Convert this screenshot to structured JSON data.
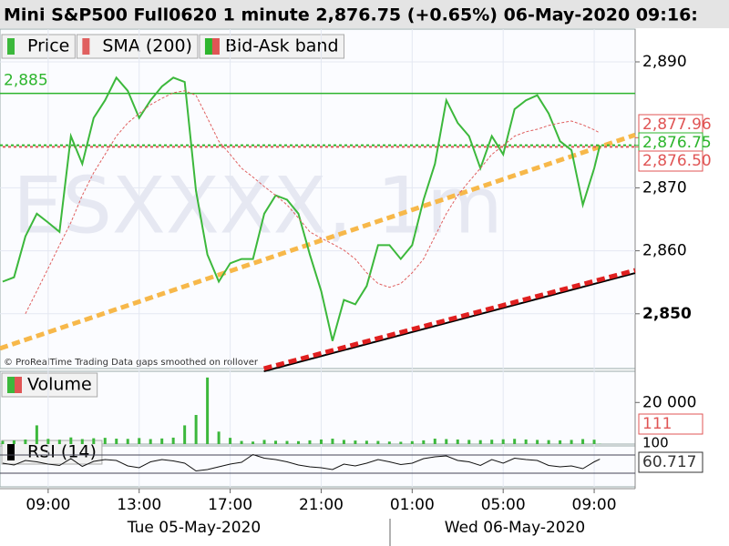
{
  "chart_data": [
    {
      "type": "line",
      "title": "Mini S&P500 Full0620 1 minute 2,876.75 (+0.65%) 06-May-2020 09:16:",
      "watermark": "ESXXXX, 1m",
      "note": "© ProRealTime Trading  Data gaps smoothed on rollover",
      "x": [
        "05-May-2020 07:00",
        "05-May-2020 07:30",
        "05-May-2020 08:00",
        "05-May-2020 08:30",
        "05-May-2020 09:00",
        "05-May-2020 09:30",
        "05-May-2020 10:00",
        "05-May-2020 10:30",
        "05-May-2020 11:00",
        "05-May-2020 11:30",
        "05-May-2020 12:00",
        "05-May-2020 12:30",
        "05-May-2020 13:00",
        "05-May-2020 13:30",
        "05-May-2020 14:00",
        "05-May-2020 14:30",
        "05-May-2020 15:00",
        "05-May-2020 15:30",
        "05-May-2020 16:00",
        "05-May-2020 16:30",
        "05-May-2020 17:00",
        "05-May-2020 17:30",
        "05-May-2020 18:00",
        "05-May-2020 18:30",
        "05-May-2020 19:00",
        "05-May-2020 19:30",
        "05-May-2020 20:00",
        "05-May-2020 20:30",
        "05-May-2020 21:00",
        "05-May-2020 21:30",
        "05-May-2020 22:00",
        "05-May-2020 22:30",
        "05-May-2020 23:00",
        "05-May-2020 23:30",
        "06-May-2020 00:00",
        "06-May-2020 00:30",
        "06-May-2020 01:00",
        "06-May-2020 01:30",
        "06-May-2020 02:00",
        "06-May-2020 02:30",
        "06-May-2020 03:00",
        "06-May-2020 03:30",
        "06-May-2020 04:00",
        "06-May-2020 04:30",
        "06-May-2020 05:00",
        "06-May-2020 05:30",
        "06-May-2020 06:00",
        "06-May-2020 06:30",
        "06-May-2020 07:00",
        "06-May-2020 07:30",
        "06-May-2020 08:00",
        "06-May-2020 08:30",
        "06-May-2020 09:00",
        "06-May-2020 09:15"
      ],
      "series": [
        {
          "name": "Price",
          "color": "#3cb83c",
          "values": [
            2855.1,
            2855.8,
            2862.3,
            2865.9,
            2864.5,
            2863.0,
            2878.2,
            2873.8,
            2881.1,
            2883.9,
            2887.5,
            2885.4,
            2881.1,
            2883.9,
            2886.1,
            2887.5,
            2886.8,
            2869.5,
            2859.4,
            2855.1,
            2858.0,
            2858.7,
            2858.7,
            2865.9,
            2868.8,
            2868.1,
            2865.9,
            2859.4,
            2853.6,
            2845.7,
            2852.2,
            2851.5,
            2854.4,
            2860.9,
            2860.9,
            2858.7,
            2860.9,
            2868.1,
            2873.8,
            2883.9,
            2880.3,
            2878.2,
            2873.1,
            2878.2,
            2875.3,
            2882.5,
            2883.9,
            2884.7,
            2881.8,
            2877.4,
            2876.0,
            2867.3,
            2873.1,
            2876.75
          ]
        },
        {
          "name": "SMA (200)",
          "color": "#e06060",
          "values": [
            null,
            null,
            2850.0,
            2853.6,
            2857.2,
            2860.9,
            2864.5,
            2868.8,
            2872.4,
            2875.3,
            2878.2,
            2880.3,
            2881.8,
            2883.2,
            2884.2,
            2885.1,
            2885.4,
            2884.7,
            2881.1,
            2877.4,
            2875.3,
            2873.1,
            2871.7,
            2870.2,
            2868.8,
            2867.3,
            2865.2,
            2863.0,
            2862.0,
            2861.1,
            2860.1,
            2858.7,
            2856.5,
            2854.8,
            2854.2,
            2854.8,
            2856.5,
            2858.7,
            2862.3,
            2865.9,
            2868.8,
            2871.0,
            2873.1,
            2875.3,
            2876.7,
            2878.2,
            2878.9,
            2879.3,
            2879.9,
            2880.3,
            2880.6,
            2880.0,
            2879.2,
            2878.7
          ]
        }
      ],
      "band": {
        "name": "Bid-Ask band",
        "levels": [
          2876.75,
          2876.5
        ],
        "colors": [
          "#2db52d",
          "#e05555"
        ]
      },
      "hline": {
        "value": 2885,
        "label": "2,885",
        "color": "#2db52d"
      },
      "price_labels": [
        {
          "value": 2877.96,
          "label": "2,877.96",
          "color": "#e05555"
        },
        {
          "value": 2876.75,
          "label": "2,876.75",
          "color": "#2db52d"
        },
        {
          "value": 2876.5,
          "label": "2,876.50",
          "color": "#e05555"
        }
      ],
      "trend_lines": [
        {
          "color": "#f7b84a",
          "points": [
            {
              "x": "05-May-2020 06:53",
              "y": 2844.5
            },
            {
              "x": "06-May-2020 10:48",
              "y": 2878.4
            }
          ]
        },
        {
          "color": "#e02020",
          "points": [
            {
              "x": "05-May-2020 18:29",
              "y": 2841.3
            },
            {
              "x": "06-May-2020 10:48",
              "y": 2856.9
            }
          ]
        }
      ],
      "xlim": [
        "05-May-2020 06:53",
        "06-May-2020 10:48"
      ],
      "xticks": [
        {
          "value": "05-May-2020 09:00",
          "label": "09:00"
        },
        {
          "value": "05-May-2020 13:00",
          "label": "13:00"
        },
        {
          "value": "05-May-2020 17:00",
          "label": "17:00"
        },
        {
          "value": "05-May-2020 21:00",
          "label": "21:00"
        },
        {
          "value": "06-May-2020 01:00",
          "label": "01:00"
        },
        {
          "value": "06-May-2020 05:00",
          "label": "05:00"
        },
        {
          "value": "06-May-2020 09:00",
          "label": "09:00"
        }
      ],
      "day_labels": [
        "Tue 05-May-2020",
        "Wed 06-May-2020"
      ],
      "ylim": [
        2841.3,
        2895.2
      ],
      "yticks": [
        {
          "value": 2850,
          "label": "2,850"
        },
        {
          "value": 2860,
          "label": "2,860"
        },
        {
          "value": 2870,
          "label": "2,870"
        },
        {
          "value": 2890,
          "label": "2,890"
        }
      ]
    },
    {
      "type": "bar",
      "name": "Volume",
      "color": "#3cb83c",
      "values": [
        1500,
        1800,
        2200,
        9000,
        2500,
        2100,
        3200,
        2400,
        2800,
        3000,
        2600,
        2500,
        2900,
        2400,
        2700,
        3100,
        9000,
        14000,
        32000,
        6000,
        3000,
        1500,
        1200,
        2000,
        1600,
        1500,
        1400,
        1800,
        2200,
        2600,
        2000,
        1700,
        1600,
        1500,
        1200,
        1100,
        1400,
        1800,
        2600,
        2400,
        2200,
        2000,
        1900,
        2100,
        2300,
        2500,
        2200,
        2000,
        1900,
        1800,
        2000,
        2400,
        2100,
        111
      ],
      "ylim": [
        0,
        35000
      ],
      "yticks": [
        {
          "value": 20000,
          "label": "20 000"
        }
      ],
      "last_label": "111"
    },
    {
      "type": "line",
      "name": "RSI (14)",
      "color": "#111111",
      "values": [
        52,
        48,
        58,
        55,
        50,
        47,
        62,
        45,
        56,
        60,
        58,
        46,
        42,
        55,
        60,
        57,
        52,
        35,
        38,
        44,
        50,
        54,
        71,
        63,
        60,
        55,
        48,
        44,
        42,
        38,
        50,
        46,
        52,
        60,
        55,
        49,
        52,
        62,
        66,
        68,
        58,
        55,
        47,
        60,
        52,
        63,
        60,
        58,
        47,
        44,
        46,
        40,
        55,
        60.717
      ],
      "ylim": [
        0,
        100
      ],
      "levels": [
        70,
        30
      ],
      "yticks": [
        100
      ],
      "last_label": "60.717"
    }
  ]
}
